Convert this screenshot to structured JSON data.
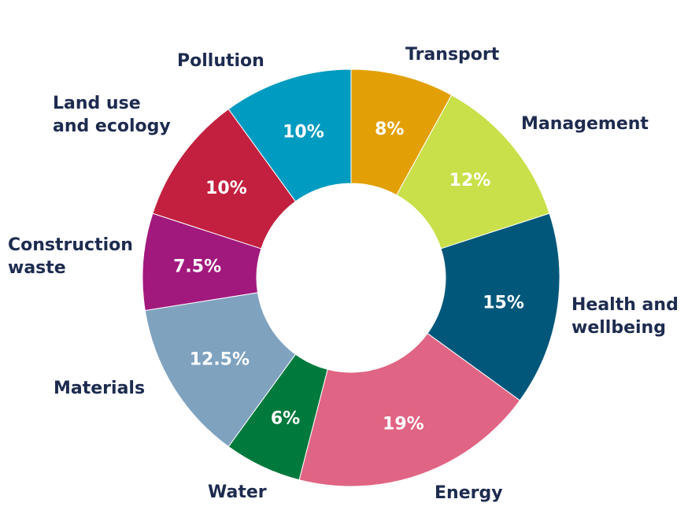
{
  "chart_data": {
    "type": "pie",
    "donut": true,
    "legend": "none",
    "slices": [
      {
        "label": [
          "Transport"
        ],
        "value": 8,
        "value_label": "8%",
        "color": "#e3a006"
      },
      {
        "label": [
          "Management"
        ],
        "value": 12,
        "value_label": "12%",
        "color": "#c9e04a"
      },
      {
        "label": [
          "Health and",
          "wellbeing"
        ],
        "value": 15,
        "value_label": "15%",
        "color": "#00577a"
      },
      {
        "label": [
          "Energy"
        ],
        "value": 19,
        "value_label": "19%",
        "color": "#e06483"
      },
      {
        "label": [
          "Water"
        ],
        "value": 6,
        "value_label": "6%",
        "color": "#00793c"
      },
      {
        "label": [
          "Materials"
        ],
        "value": 12.5,
        "value_label": "12.5%",
        "color": "#7fa2bf"
      },
      {
        "label": [
          "Construction",
          "waste"
        ],
        "value": 7.5,
        "value_label": "7.5%",
        "color": "#a2197d"
      },
      {
        "label": [
          "Land use",
          "and ecology"
        ],
        "value": 10,
        "value_label": "10%",
        "color": "#c3203f"
      },
      {
        "label": [
          "Pollution"
        ],
        "value": 10,
        "value_label": "10%",
        "color": "#009bc0"
      }
    ]
  }
}
